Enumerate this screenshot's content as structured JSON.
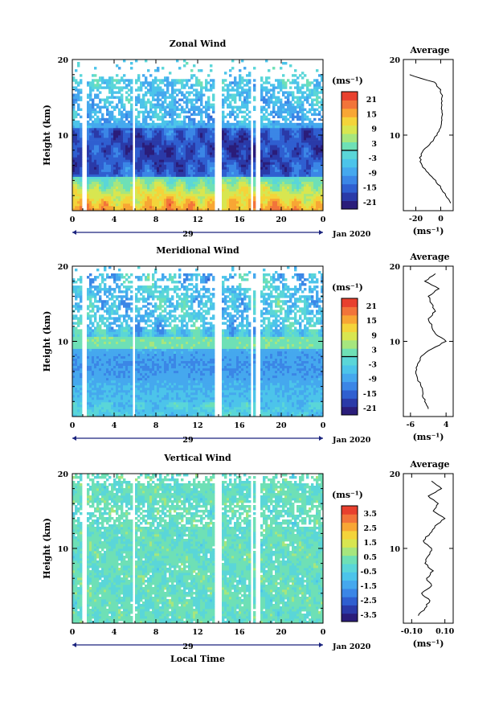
{
  "xlabel": "Local Time",
  "date_label": "Jan 2020",
  "day_label": "29",
  "unit_label": "(ms⁻¹)",
  "average_unit_label": "(ms⁻¹)",
  "colormap": [
    "#2a1d7a",
    "#2a3aa8",
    "#2f5fd0",
    "#3b86e6",
    "#45a8ee",
    "#4cc4ea",
    "#5ad6d8",
    "#6ee0b6",
    "#a6e67e",
    "#d8e650",
    "#f4d43a",
    "#f8a634",
    "#f2743a",
    "#e8402e"
  ],
  "chart_data": [
    {
      "type": "heatmap",
      "title": "Zonal Wind",
      "xlabel": "",
      "ylabel": "Height (km)",
      "xlim": [
        0,
        24
      ],
      "ylim": [
        0,
        20
      ],
      "x_ticks": [
        "0",
        "4",
        "8",
        "12",
        "16",
        "20",
        "0"
      ],
      "y_ticks": [
        "0",
        "10",
        "20"
      ],
      "data_gaps_hours": [
        [
          1.0,
          1.4
        ],
        [
          5.7,
          6.1
        ],
        [
          13.7,
          14.3
        ],
        [
          17.1,
          17.4
        ],
        [
          17.6,
          17.9
        ]
      ],
      "colorbar": {
        "label": "(ms⁻¹)",
        "min": -24,
        "max": 24,
        "ticks": [
          "21",
          "15",
          "9",
          "3",
          "-3",
          "-9",
          "-15",
          "-21"
        ],
        "zero_line": true
      },
      "average_profile": {
        "title": "Average",
        "xlabel": "(ms⁻¹)",
        "xlim": [
          -30,
          10
        ],
        "x_ticks": [
          "-20",
          "0"
        ],
        "height_km": [
          1,
          2,
          3,
          4,
          5,
          6,
          7,
          8,
          9,
          10,
          11,
          12,
          13,
          14,
          15,
          16,
          17,
          18
        ],
        "values": [
          8,
          4,
          0,
          -4,
          -10,
          -15,
          -17,
          -14,
          -8,
          -3,
          0,
          1,
          1,
          1,
          1,
          0,
          -5,
          -25
        ]
      }
    },
    {
      "type": "heatmap",
      "title": "Meridional Wind",
      "xlabel": "",
      "ylabel": "Height (km)",
      "xlim": [
        0,
        24
      ],
      "ylim": [
        0,
        20
      ],
      "x_ticks": [
        "0",
        "4",
        "8",
        "12",
        "16",
        "20",
        "0"
      ],
      "y_ticks": [
        "0",
        "10",
        "20"
      ],
      "data_gaps_hours": [
        [
          1.0,
          1.4
        ],
        [
          5.7,
          6.1
        ],
        [
          13.7,
          14.3
        ],
        [
          17.1,
          17.4
        ],
        [
          17.6,
          17.9
        ]
      ],
      "colorbar": {
        "label": "(ms⁻¹)",
        "min": -24,
        "max": 24,
        "ticks": [
          "21",
          "15",
          "9",
          "3",
          "-3",
          "-9",
          "-15",
          "-21"
        ],
        "zero_line": true
      },
      "average_profile": {
        "title": "Average",
        "xlabel": "(ms⁻¹)",
        "xlim": [
          -8,
          6
        ],
        "x_ticks": [
          "-6",
          "4"
        ],
        "height_km": [
          1,
          2,
          3,
          4,
          5,
          6,
          7,
          8,
          9,
          10,
          11,
          12,
          13,
          14,
          15,
          16,
          17,
          18,
          19
        ],
        "values": [
          -1,
          -2,
          -2.5,
          -3,
          -4,
          -4.5,
          -4,
          -3,
          0,
          4,
          1,
          0,
          -1,
          1,
          0,
          -1,
          2,
          -2,
          1
        ]
      }
    },
    {
      "type": "heatmap",
      "title": "Vertical Wind",
      "xlabel": "Local Time",
      "ylabel": "Height (km)",
      "xlim": [
        0,
        24
      ],
      "ylim": [
        0,
        20
      ],
      "x_ticks": [
        "0",
        "4",
        "8",
        "12",
        "16",
        "20",
        "0"
      ],
      "y_ticks": [
        "0",
        "10",
        "20"
      ],
      "data_gaps_hours": [
        [
          1.0,
          1.4
        ],
        [
          5.7,
          6.1
        ],
        [
          13.7,
          14.3
        ],
        [
          17.1,
          17.4
        ],
        [
          17.6,
          17.9
        ]
      ],
      "colorbar": {
        "label": "(ms⁻¹)",
        "min": -4,
        "max": 4,
        "ticks": [
          "3.5",
          "2.5",
          "1.5",
          "0.5",
          "-0.5",
          "-1.5",
          "-2.5",
          "-3.5"
        ],
        "zero_line": false
      },
      "average_profile": {
        "title": "Average",
        "xlabel": "(ms⁻¹)",
        "xlim": [
          -0.15,
          0.15
        ],
        "x_ticks": [
          "-0.10",
          "0.10"
        ],
        "height_km": [
          1,
          2,
          3,
          4,
          5,
          6,
          7,
          8,
          9,
          10,
          11,
          12,
          13,
          14,
          15,
          16,
          17,
          18,
          19
        ],
        "values": [
          -0.06,
          -0.02,
          0.01,
          -0.04,
          0.02,
          -0.01,
          0.03,
          -0.02,
          0.0,
          0.02,
          -0.03,
          0.01,
          0.04,
          0.1,
          0.03,
          0.06,
          0.0,
          0.08,
          0.02
        ]
      }
    }
  ]
}
